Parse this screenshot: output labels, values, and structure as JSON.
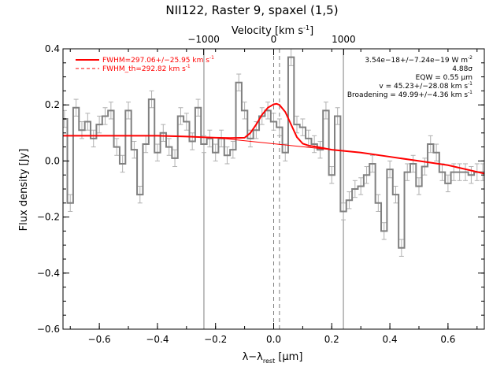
{
  "chart_data": {
    "type": "line",
    "title": "NII122, Raster 9, spaxel (1,5)",
    "xlabel": "λ−λ",
    "xlabel_sub": "rest",
    "xlabel_unit": "[μm]",
    "ylabel": "Flux density [Jy]",
    "top_axis_label": "Velocity [km s",
    "top_axis_label_sup": "-1",
    "top_axis_label_end": "]",
    "xlim": [
      -0.725,
      0.725
    ],
    "ylim": [
      -0.6,
      0.4
    ],
    "grid": false,
    "legend_position": "top-left",
    "x_ticks": [
      -0.6,
      -0.4,
      -0.2,
      0.0,
      0.2,
      0.4,
      0.6
    ],
    "x_tick_labels": [
      "−0.6",
      "−0.4",
      "−0.2",
      "0.0",
      "0.2",
      "0.4",
      "0.6"
    ],
    "y_ticks": [
      -0.6,
      -0.4,
      -0.2,
      0.0,
      0.2,
      0.4
    ],
    "y_tick_labels": [
      "−0.6",
      "−0.4",
      "−0.2",
      "0.0",
      "0.2",
      "0.4"
    ],
    "top_ticks_velocity": [
      -1000,
      0,
      1000
    ],
    "top_tick_labels": [
      "−1000",
      "0",
      "1000"
    ],
    "microns_per_kms": 0.000241,
    "vertical_lines_solid": [
      -0.24,
      0.24
    ],
    "vertical_lines_dashed": [
      0.0,
      0.02
    ],
    "legend": [
      {
        "text": "FWHM=297.06+/−25.95 km s",
        "sup": "-1",
        "style": "solid"
      },
      {
        "text": "FWHM_th=292.82 km s",
        "sup": "-1",
        "style": "dashed"
      }
    ],
    "annotations": [
      {
        "text": "3.54e−18+/−7.24e−19 W m",
        "sup": "-2"
      },
      {
        "text": "4.88σ",
        "sup": ""
      },
      {
        "text": "EQW = 0.55 μm",
        "sup": ""
      },
      {
        "text": "v = 45.23+/−28.08 km s",
        "sup": "-1"
      },
      {
        "text": "Broadening = 49.99+/−4.36 km s",
        "sup": "-1"
      }
    ],
    "series": [
      {
        "style": "step",
        "color": "#808080",
        "x": [
          -0.72,
          -0.7,
          -0.68,
          -0.66,
          -0.64,
          -0.62,
          -0.6,
          -0.58,
          -0.56,
          -0.54,
          -0.52,
          -0.5,
          -0.48,
          -0.46,
          -0.44,
          -0.42,
          -0.4,
          -0.38,
          -0.36,
          -0.34,
          -0.32,
          -0.3,
          -0.28,
          -0.26,
          -0.24,
          -0.22,
          -0.2,
          -0.18,
          -0.16,
          -0.14,
          -0.12,
          -0.1,
          -0.08,
          -0.06,
          -0.04,
          -0.02,
          0.0,
          0.02,
          0.04,
          0.06,
          0.08,
          0.1,
          0.12,
          0.14,
          0.16,
          0.18,
          0.2,
          0.22,
          0.24,
          0.26,
          0.28,
          0.3,
          0.32,
          0.34,
          0.36,
          0.38,
          0.4,
          0.42,
          0.44,
          0.46,
          0.48,
          0.5,
          0.52,
          0.54,
          0.56,
          0.58,
          0.6,
          0.62,
          0.64,
          0.66,
          0.68,
          0.7,
          0.72
        ],
        "y": [
          0.15,
          -0.15,
          0.19,
          0.11,
          0.14,
          0.08,
          0.13,
          0.16,
          0.18,
          0.05,
          -0.01,
          0.18,
          0.04,
          -0.12,
          0.06,
          0.22,
          0.03,
          0.1,
          0.05,
          0.01,
          0.16,
          0.14,
          0.07,
          0.19,
          0.06,
          0.08,
          0.03,
          0.08,
          0.02,
          0.04,
          0.28,
          0.18,
          0.08,
          0.11,
          0.16,
          0.18,
          0.14,
          0.12,
          0.03,
          0.37,
          0.13,
          0.12,
          0.08,
          0.06,
          0.04,
          0.18,
          -0.05,
          0.16,
          -0.18,
          -0.14,
          -0.1,
          -0.09,
          -0.05,
          -0.01,
          -0.15,
          -0.25,
          -0.03,
          -0.12,
          -0.31,
          -0.04,
          -0.01,
          -0.09,
          -0.02,
          0.06,
          0.03,
          -0.04,
          -0.08,
          -0.04,
          -0.04,
          -0.04,
          -0.05,
          -0.04,
          -0.04
        ],
        "errors": [
          0.03,
          0.03,
          0.03,
          0.03,
          0.03,
          0.03,
          0.03,
          0.03,
          0.03,
          0.03,
          0.03,
          0.03,
          0.03,
          0.03,
          0.03,
          0.03,
          0.03,
          0.03,
          0.03,
          0.03,
          0.03,
          0.03,
          0.03,
          0.03,
          0.03,
          0.03,
          0.03,
          0.03,
          0.03,
          0.03,
          0.03,
          0.03,
          0.03,
          0.03,
          0.03,
          0.03,
          0.03,
          0.03,
          0.03,
          0.03,
          0.03,
          0.03,
          0.03,
          0.03,
          0.03,
          0.03,
          0.03,
          0.03,
          0.03,
          0.03,
          0.03,
          0.03,
          0.03,
          0.03,
          0.03,
          0.03,
          0.03,
          0.03,
          0.03,
          0.03,
          0.03,
          0.03,
          0.03,
          0.03,
          0.03,
          0.03,
          0.03,
          0.03,
          0.03,
          0.03,
          0.03,
          0.03,
          0.03
        ]
      },
      {
        "style": "line",
        "color": "#ff0000",
        "x": [
          -0.725,
          -0.6,
          -0.4,
          -0.3,
          -0.2,
          -0.15,
          -0.1,
          -0.08,
          -0.06,
          -0.04,
          -0.02,
          0.0,
          0.01,
          0.02,
          0.04,
          0.06,
          0.08,
          0.1,
          0.12,
          0.15,
          0.2,
          0.3,
          0.4,
          0.5,
          0.6,
          0.725
        ],
        "y": [
          0.09,
          0.09,
          0.09,
          0.087,
          0.083,
          0.082,
          0.083,
          0.1,
          0.13,
          0.165,
          0.19,
          0.202,
          0.204,
          0.2,
          0.175,
          0.13,
          0.085,
          0.062,
          0.055,
          0.05,
          0.04,
          0.03,
          0.015,
          0.0,
          -0.015,
          -0.045
        ]
      },
      {
        "style": "line",
        "color": "#ff0000",
        "width": "thin",
        "x": [
          -0.2,
          0.2
        ],
        "y": [
          0.083,
          0.04
        ]
      }
    ]
  }
}
